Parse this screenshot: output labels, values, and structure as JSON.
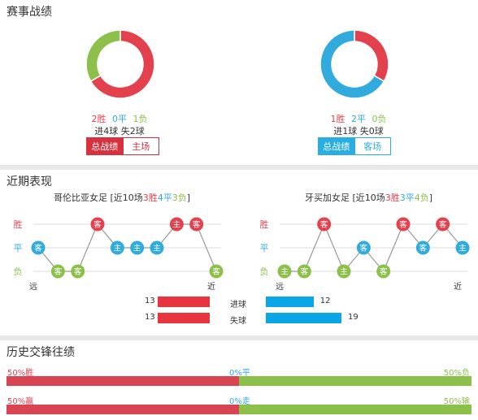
{
  "sections": {
    "record_title": "赛事战绩",
    "recent_title": "近期表现",
    "h2h_title": "历史交锋往绩"
  },
  "colors": {
    "win": "#e2414d",
    "draw": "#31aade",
    "loss": "#8cc04b"
  },
  "record": {
    "left": {
      "wins": "2胜",
      "draws": "0平",
      "losses": "1负",
      "goals": "进4球 失2球",
      "tab_total": "总战绩",
      "tab_venue": "主场",
      "chart_data": {
        "type": "pie",
        "categories": [
          "胜",
          "平",
          "负"
        ],
        "values": [
          2,
          0,
          1
        ]
      }
    },
    "right": {
      "wins": "1胜",
      "draws": "2平",
      "losses": "0负",
      "goals": "进1球 失0球",
      "tab_total": "总战绩",
      "tab_venue": "客场",
      "chart_data": {
        "type": "pie",
        "categories": [
          "胜",
          "平",
          "负"
        ],
        "values": [
          1,
          2,
          0
        ]
      }
    }
  },
  "recent": {
    "y_labels": [
      "胜",
      "平",
      "负"
    ],
    "far_label": "远",
    "near_label": "近",
    "left": {
      "team": "哥伦比亚女足",
      "pre": "[近10场",
      "w": "3胜",
      "d": "4平",
      "l": "3负",
      "post": "]",
      "chart_data": {
        "type": "line",
        "results": [
          "平",
          "负",
          "负",
          "胜",
          "平",
          "平",
          "平",
          "胜",
          "胜",
          "负"
        ],
        "venues": [
          "客",
          "客",
          "客",
          "客",
          "主",
          "主",
          "主",
          "主",
          "客",
          "客"
        ]
      }
    },
    "right": {
      "team": "牙买加女足",
      "pre": "[近10场",
      "w": "3胜",
      "d": "3平",
      "l": "4负",
      "post": "]",
      "chart_data": {
        "type": "line",
        "results": [
          "负",
          "负",
          "胜",
          "负",
          "平",
          "负",
          "胜",
          "平",
          "胜",
          "平"
        ],
        "venues": [
          "主",
          "客",
          "客",
          "主",
          "客",
          "客",
          "客",
          "客",
          "客",
          "主"
        ]
      }
    },
    "compare": {
      "goals_label": "进球",
      "conceded_label": "失球",
      "left_goals": "13",
      "left_conceded": "13",
      "right_goals": "12",
      "right_conceded": "19",
      "chart_data": {
        "type": "bar",
        "categories": [
          "进球",
          "失球"
        ],
        "series": [
          {
            "name": "哥伦比亚女足",
            "values": [
              13,
              13
            ]
          },
          {
            "name": "牙买加女足",
            "values": [
              12,
              19
            ]
          }
        ]
      }
    }
  },
  "h2h": {
    "row1": {
      "left": "50%胜",
      "mid": "0%平",
      "right": "50%负"
    },
    "row2": {
      "left": "50%赢",
      "mid": "0%走",
      "right": "50%输"
    },
    "chart_data": {
      "type": "bar",
      "categories": [
        "胜平负",
        "赢走输"
      ],
      "series": [
        {
          "name": "胜",
          "values": [
            50,
            50
          ]
        },
        {
          "name": "平",
          "values": [
            0,
            0
          ]
        },
        {
          "name": "负",
          "values": [
            50,
            50
          ]
        }
      ]
    }
  }
}
